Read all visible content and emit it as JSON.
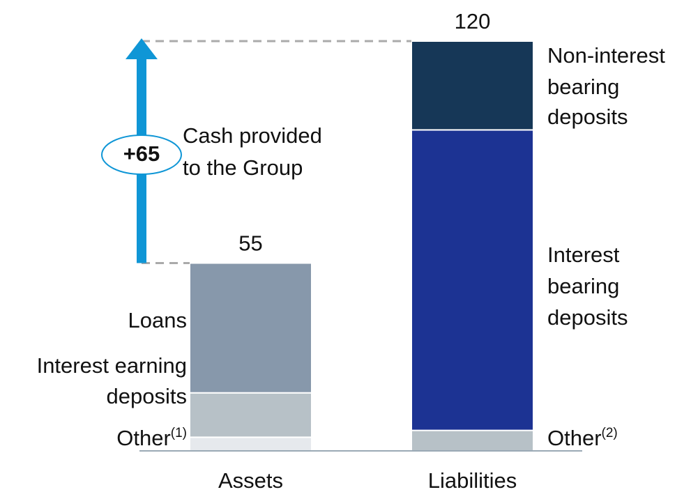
{
  "chart_data": {
    "type": "bar",
    "stacked": true,
    "bars": [
      {
        "category": "Assets",
        "total": 55,
        "label_side": "left",
        "segments": [
          {
            "label_lines": [
              "Other"
            ],
            "note": "(1)",
            "color": "#e6e9ed",
            "value": 4
          },
          {
            "label_lines": [
              "Interest earning",
              "deposits"
            ],
            "color": "#b7c1c7",
            "value": 13
          },
          {
            "label_lines": [
              "Loans"
            ],
            "color": "#8798ab",
            "value": 38
          }
        ]
      },
      {
        "category": "Liabilities",
        "total": 120,
        "label_side": "right",
        "segments": [
          {
            "label_lines": [
              "Other"
            ],
            "note": "(2)",
            "color": "#b7c1c7",
            "value": 6
          },
          {
            "label_lines": [
              "Interest",
              "bearing",
              "deposits"
            ],
            "color": "#1c3393",
            "value": 88
          },
          {
            "label_lines": [
              "Non-interest",
              "bearing",
              "deposits"
            ],
            "color": "#163757",
            "value": 26
          }
        ]
      }
    ],
    "annotation": {
      "value": 65,
      "label": "+65",
      "text_lines": [
        "Cash provided",
        "to the Group"
      ],
      "color": "#0f96d6"
    }
  }
}
